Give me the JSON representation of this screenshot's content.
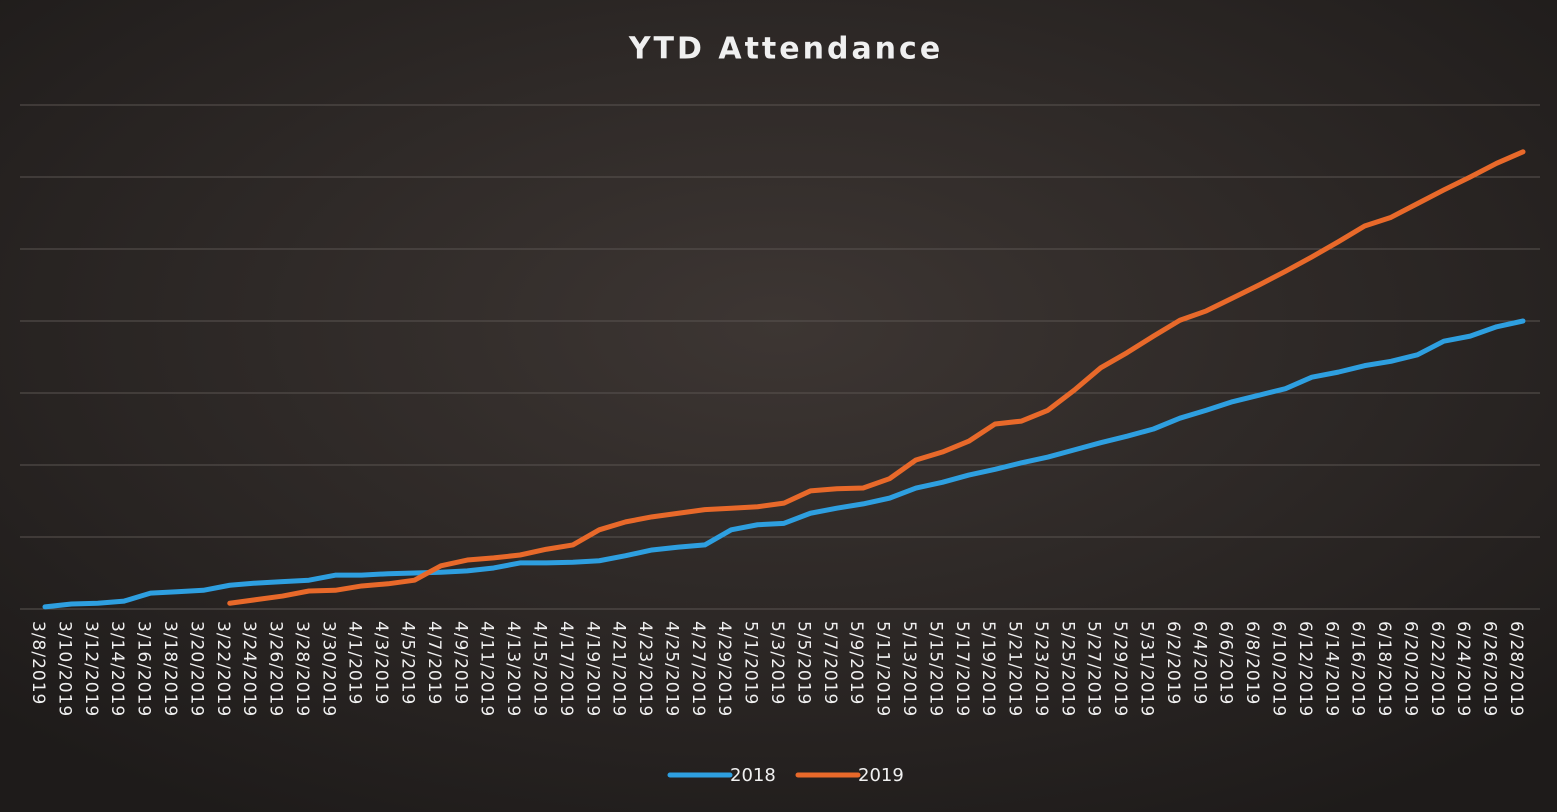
{
  "chart_data": {
    "type": "line",
    "title": "YTD Attendance",
    "categories": [
      "3/8/2019",
      "3/10/2019",
      "3/12/2019",
      "3/14/2019",
      "3/16/2019",
      "3/18/2019",
      "3/20/2019",
      "3/22/2019",
      "3/24/2019",
      "3/26/2019",
      "3/28/2019",
      "3/30/2019",
      "4/1/2019",
      "4/3/2019",
      "4/5/2019",
      "4/7/2019",
      "4/9/2019",
      "4/11/2019",
      "4/13/2019",
      "4/15/2019",
      "4/17/2019",
      "4/19/2019",
      "4/21/2019",
      "4/23/2019",
      "4/25/2019",
      "4/27/2019",
      "4/29/2019",
      "5/1/2019",
      "5/3/2019",
      "5/5/2019",
      "5/7/2019",
      "5/9/2019",
      "5/11/2019",
      "5/13/2019",
      "5/15/2019",
      "5/17/2019",
      "5/19/2019",
      "5/21/2019",
      "5/23/2019",
      "5/25/2019",
      "5/27/2019",
      "5/29/2019",
      "5/31/2019",
      "6/2/2019",
      "6/4/2019",
      "6/6/2019",
      "6/8/2019",
      "6/10/2019",
      "6/12/2019",
      "6/14/2019",
      "6/16/2019",
      "6/18/2019",
      "6/20/2019",
      "6/22/2019",
      "6/24/2019",
      "6/26/2019",
      "6/28/2019"
    ],
    "series": [
      {
        "name": "2018",
        "color": "#2e9fe0",
        "values": [
          0.03,
          0.07,
          0.08,
          0.11,
          0.22,
          0.24,
          0.26,
          0.33,
          0.36,
          0.38,
          0.4,
          0.47,
          0.47,
          0.49,
          0.5,
          0.51,
          0.53,
          0.57,
          0.64,
          0.64,
          0.65,
          0.67,
          0.74,
          0.82,
          0.86,
          0.89,
          1.1,
          1.17,
          1.19,
          1.33,
          1.4,
          1.46,
          1.54,
          1.68,
          1.76,
          1.86,
          1.94,
          2.03,
          2.11,
          2.21,
          2.31,
          2.4,
          2.5,
          2.65,
          2.76,
          2.88,
          2.97,
          3.06,
          3.22,
          3.29,
          3.38,
          3.44,
          3.53,
          3.72,
          3.79,
          3.92,
          4.0
        ]
      },
      {
        "name": "2019",
        "color": "#e8692a",
        "values": [
          null,
          null,
          null,
          null,
          null,
          null,
          null,
          0.08,
          0.13,
          0.18,
          0.25,
          0.26,
          0.32,
          0.35,
          0.4,
          0.6,
          0.68,
          0.71,
          0.75,
          0.83,
          0.89,
          1.1,
          1.21,
          1.28,
          1.33,
          1.38,
          1.4,
          1.42,
          1.47,
          1.64,
          1.67,
          1.68,
          1.81,
          2.07,
          2.18,
          2.33,
          2.57,
          2.61,
          2.76,
          3.04,
          3.35,
          3.56,
          3.79,
          4.01,
          4.14,
          4.32,
          4.5,
          4.69,
          4.89,
          5.1,
          5.32,
          5.44,
          5.63,
          5.82,
          6.0,
          6.19,
          6.35
        ]
      }
    ],
    "ylim": [
      0,
      7
    ],
    "yticks": [
      0,
      1,
      2,
      3,
      4,
      5,
      6,
      7
    ],
    "grid": true,
    "legend": "bottom"
  }
}
